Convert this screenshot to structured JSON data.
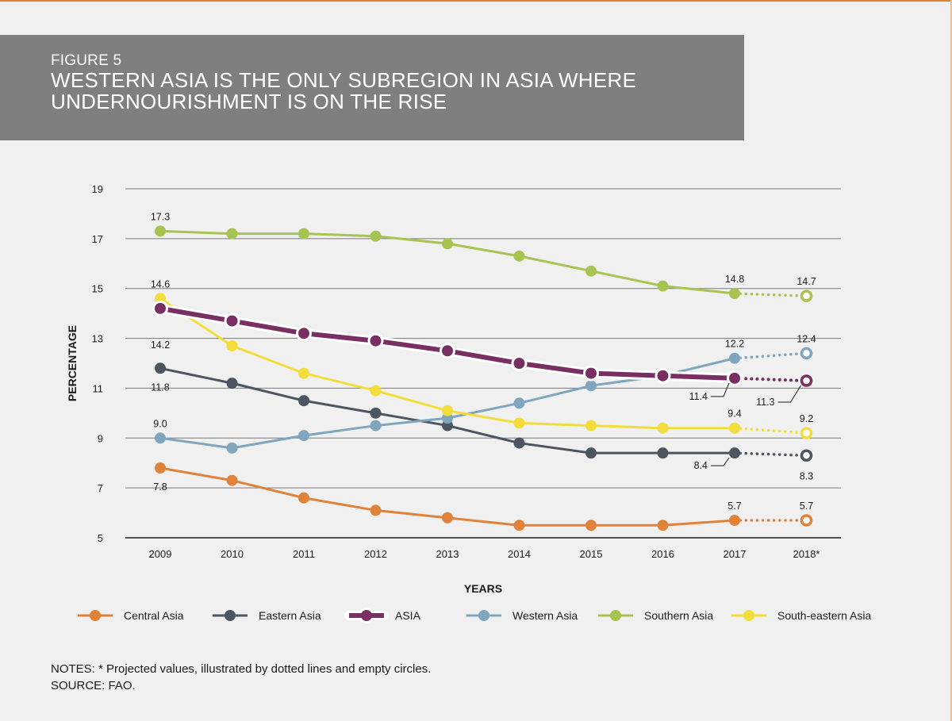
{
  "figure": {
    "label": "FIGURE 5",
    "title": "WESTERN ASIA IS THE ONLY SUBREGION IN ASIA WHERE UNDERNOURISHMENT IS ON THE RISE"
  },
  "notes": {
    "line1": "NOTES: * Projected values, illustrated by dotted lines and empty circles.",
    "line2": "SOURCE: FAO."
  },
  "chart_data": {
    "type": "line",
    "title": "",
    "xlabel": "YEARS",
    "ylabel": "PERCENTAGE",
    "ylim": [
      5,
      19
    ],
    "yticks": [
      5,
      7,
      9,
      11,
      13,
      15,
      17,
      19
    ],
    "grid": true,
    "legend": "bottom",
    "projected_from_index": 8,
    "categories": [
      "2009",
      "2010",
      "2011",
      "2012",
      "2013",
      "2014",
      "2015",
      "2016",
      "2017",
      "2018*"
    ],
    "series": [
      {
        "name": "Central Asia",
        "color": "#e0823a",
        "values": [
          7.8,
          7.3,
          6.6,
          6.1,
          5.8,
          5.5,
          5.5,
          5.5,
          5.7,
          5.7
        ],
        "labels": [
          {
            "index": 0,
            "text": "7.8"
          },
          {
            "index": 8,
            "text": "5.7"
          },
          {
            "index": 9,
            "text": "5.7"
          }
        ]
      },
      {
        "name": "Eastern Asia",
        "color": "#4d5560",
        "values": [
          11.8,
          11.2,
          10.5,
          10.0,
          9.5,
          8.8,
          8.4,
          8.4,
          8.4,
          8.3
        ],
        "labels": [
          {
            "index": 0,
            "text": "11.8"
          },
          {
            "index": 8,
            "text": "8.4"
          },
          {
            "index": 9,
            "text": "8.3"
          }
        ]
      },
      {
        "name": "Western Asia",
        "color": "#7fa6bd",
        "values": [
          9.0,
          8.6,
          9.1,
          9.5,
          9.8,
          10.4,
          11.1,
          11.5,
          12.2,
          12.4
        ],
        "labels": [
          {
            "index": 0,
            "text": "9.0"
          },
          {
            "index": 8,
            "text": "12.2"
          },
          {
            "index": 9,
            "text": "12.4"
          }
        ]
      },
      {
        "name": "Southern Asia",
        "color": "#a7c352",
        "values": [
          17.3,
          17.2,
          17.2,
          17.1,
          16.8,
          16.3,
          15.7,
          15.1,
          14.8,
          14.7
        ],
        "labels": [
          {
            "index": 0,
            "text": "17.3"
          },
          {
            "index": 8,
            "text": "14.8"
          },
          {
            "index": 9,
            "text": "14.7"
          }
        ]
      },
      {
        "name": "South-eastern Asia",
        "color": "#f3dd3a",
        "values": [
          14.6,
          12.7,
          11.6,
          10.9,
          10.1,
          9.6,
          9.5,
          9.4,
          9.4,
          9.2
        ],
        "labels": [
          {
            "index": 0,
            "text": "14.6"
          },
          {
            "index": 8,
            "text": "9.4"
          },
          {
            "index": 9,
            "text": "9.2"
          }
        ]
      },
      {
        "name": "ASIA",
        "color": "#7a2f62",
        "emphasis": true,
        "values": [
          14.2,
          13.7,
          13.2,
          12.9,
          12.5,
          12.0,
          11.6,
          11.5,
          11.4,
          11.3
        ],
        "labels": [
          {
            "index": 0,
            "text": "14.2"
          },
          {
            "index": 8,
            "text": "11.4"
          },
          {
            "index": 9,
            "text": "11.3"
          }
        ]
      }
    ],
    "legend_order": [
      "Central Asia",
      "Eastern Asia",
      "ASIA",
      "Western Asia",
      "Southern Asia",
      "South-eastern Asia"
    ]
  }
}
